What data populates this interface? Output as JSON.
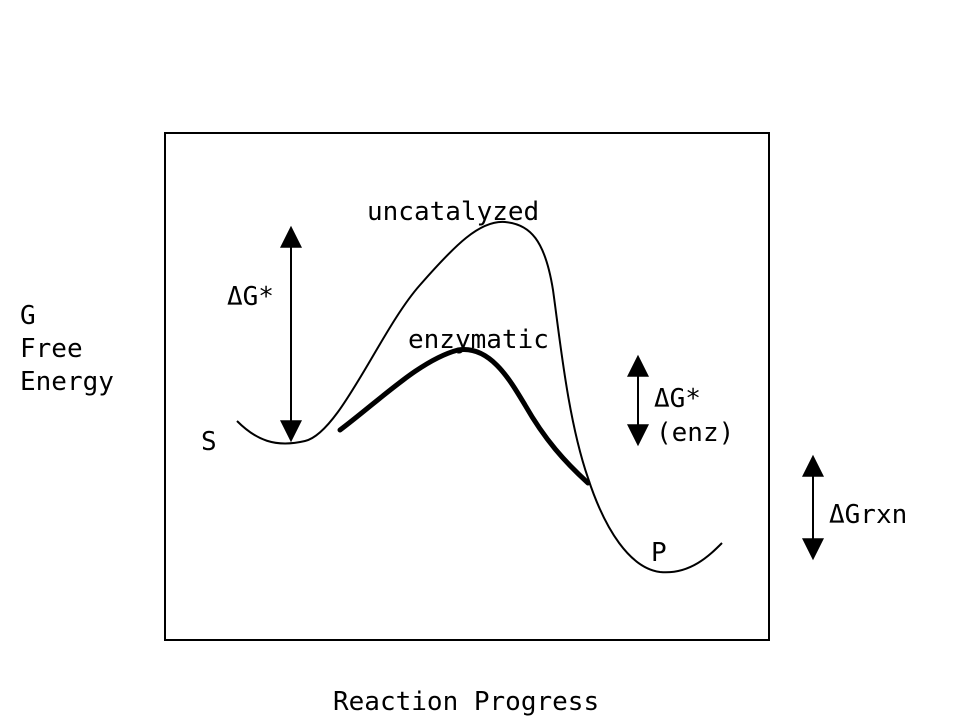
{
  "diagram": {
    "y_axis_label": [
      "G",
      "Free",
      "Energy"
    ],
    "x_axis_label": "Reaction Progress",
    "curves": {
      "uncatalyzed": "uncatalyzed",
      "enzymatic": "enzymatic"
    },
    "states": {
      "substrate": "S",
      "product": "P"
    },
    "energies": {
      "activation_uncatalyzed": "ΔG*",
      "activation_enzymatic_line1": "ΔG*",
      "activation_enzymatic_line2": "(enz)",
      "reaction": "ΔGrxn"
    },
    "colors": {
      "line": "#000000",
      "background": "#ffffff"
    }
  }
}
